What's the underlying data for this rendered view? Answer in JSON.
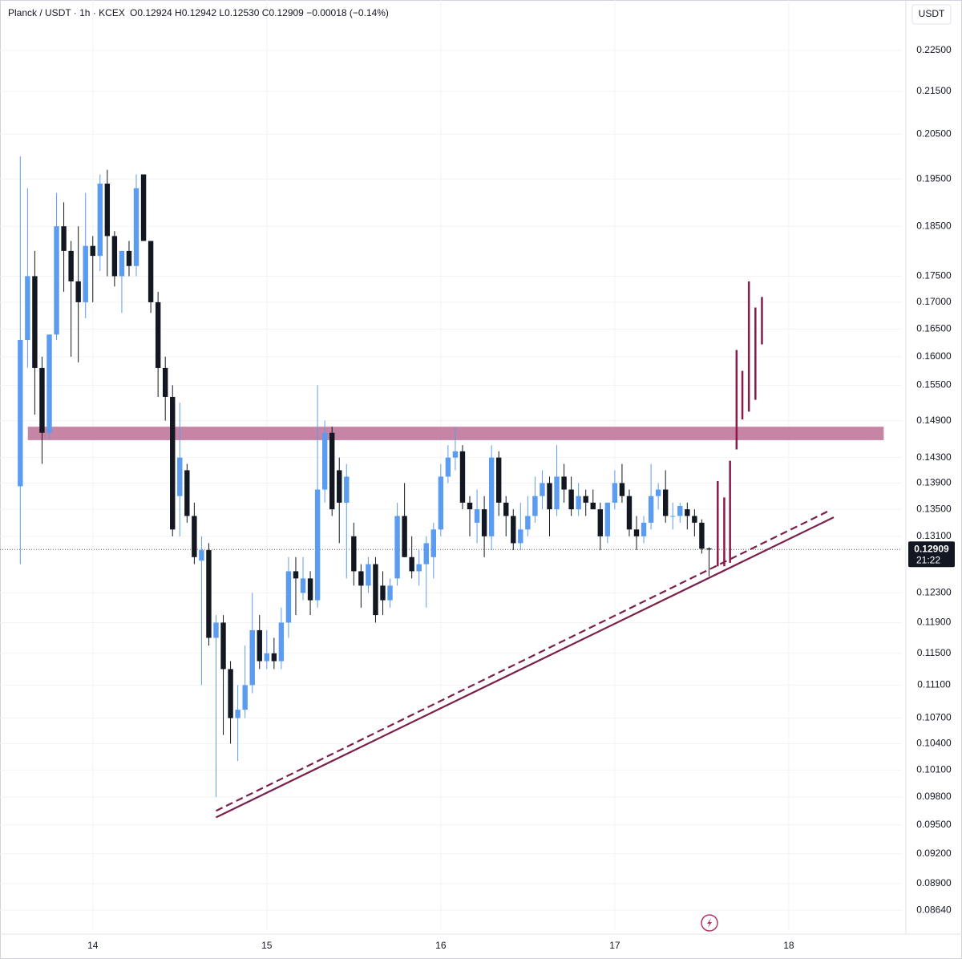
{
  "chart_data": {
    "type": "candlestick",
    "title": "Planck / USDT · 1h · KCEX",
    "ohlc_text": "O0.12924 H0.12942 L0.12530 C0.12909 −0.00018 (−0.14%)",
    "currency": "USDT",
    "x": [
      -10,
      -9,
      -8,
      -7,
      -6,
      -5,
      -4,
      -3,
      -2,
      -1,
      0,
      1,
      2,
      3,
      4,
      5,
      6,
      7,
      8,
      9,
      10,
      11,
      12,
      13,
      14,
      15,
      16,
      17,
      18,
      19,
      20,
      21,
      22,
      23,
      24,
      25,
      26,
      27,
      28,
      29,
      30,
      31,
      32,
      33,
      34,
      35,
      36,
      37,
      38,
      39,
      40,
      41,
      42,
      43,
      44,
      45,
      46,
      47,
      48,
      49,
      50,
      51,
      52,
      53,
      54,
      55,
      56,
      57,
      58,
      59,
      60,
      61,
      62,
      63,
      64,
      65,
      66,
      67,
      68,
      69,
      70,
      71,
      72,
      73,
      74,
      75,
      76,
      77,
      78,
      79,
      80,
      81,
      82,
      83,
      84,
      85
    ],
    "open": [
      0.1385,
      0.163,
      0.175,
      0.158,
      0.147,
      0.164,
      0.185,
      0.18,
      0.174,
      0.17,
      0.181,
      0.179,
      0.194,
      0.183,
      0.175,
      0.18,
      0.177,
      0.196,
      0.182,
      0.17,
      0.158,
      0.153,
      0.137,
      0.141,
      0.134,
      0.1275,
      0.129,
      0.117,
      0.119,
      0.113,
      0.107,
      0.108,
      0.111,
      0.118,
      0.114,
      0.115,
      0.114,
      0.119,
      0.126,
      0.123,
      0.125,
      0.122,
      0.138,
      0.147,
      0.141,
      0.136,
      0.131,
      0.126,
      0.124,
      0.127,
      0.124,
      0.122,
      0.125,
      0.134,
      0.128,
      0.126,
      0.127,
      0.128,
      0.132,
      0.14,
      0.143,
      0.144,
      0.136,
      0.133,
      0.135,
      0.131,
      0.143,
      0.136,
      0.134,
      0.13,
      0.132,
      0.134,
      0.137,
      0.139,
      0.135,
      0.14,
      0.138,
      0.135,
      0.137,
      0.136,
      0.135,
      0.131,
      0.136,
      0.139,
      0.137,
      0.132,
      0.131,
      0.133,
      0.137,
      0.138,
      0.134,
      0.134,
      0.135,
      0.134,
      0.133,
      0.12924
    ],
    "high": [
      0.2,
      0.193,
      0.18,
      0.16,
      0.163,
      0.192,
      0.19,
      0.182,
      0.185,
      0.192,
      0.183,
      0.196,
      0.197,
      0.184,
      0.18,
      0.182,
      0.196,
      0.196,
      0.182,
      0.172,
      0.16,
      0.155,
      0.152,
      0.142,
      0.136,
      0.131,
      0.13,
      0.12,
      0.12,
      0.114,
      0.111,
      0.116,
      0.123,
      0.12,
      0.118,
      0.117,
      0.121,
      0.128,
      0.128,
      0.128,
      0.126,
      0.155,
      0.149,
      0.148,
      0.143,
      0.142,
      0.133,
      0.127,
      0.128,
      0.128,
      0.126,
      0.125,
      0.136,
      0.139,
      0.131,
      0.129,
      0.131,
      0.133,
      0.142,
      0.145,
      0.148,
      0.145,
      0.137,
      0.138,
      0.137,
      0.145,
      0.144,
      0.137,
      0.135,
      0.136,
      0.137,
      0.14,
      0.141,
      0.14,
      0.145,
      0.142,
      0.14,
      0.139,
      0.138,
      0.138,
      0.136,
      0.136,
      0.141,
      0.142,
      0.138,
      0.134,
      0.134,
      0.142,
      0.139,
      0.141,
      0.136,
      0.136,
      0.136,
      0.135,
      0.1335,
      0.12942
    ],
    "low": [
      0.127,
      0.158,
      0.15,
      0.142,
      0.146,
      0.163,
      0.172,
      0.16,
      0.159,
      0.167,
      0.17,
      0.176,
      0.175,
      0.173,
      0.168,
      0.175,
      0.175,
      0.183,
      0.168,
      0.153,
      0.149,
      0.131,
      0.131,
      0.133,
      0.127,
      0.111,
      0.116,
      0.098,
      0.105,
      0.104,
      0.102,
      0.107,
      0.11,
      0.113,
      0.113,
      0.113,
      0.113,
      0.117,
      0.12,
      0.122,
      0.12,
      0.121,
      0.136,
      0.134,
      0.13,
      0.125,
      0.124,
      0.121,
      0.123,
      0.119,
      0.12,
      0.121,
      0.124,
      0.128,
      0.125,
      0.124,
      0.121,
      0.125,
      0.131,
      0.139,
      0.141,
      0.135,
      0.131,
      0.13,
      0.128,
      0.129,
      0.134,
      0.131,
      0.129,
      0.129,
      0.131,
      0.133,
      0.135,
      0.131,
      0.134,
      0.136,
      0.134,
      0.134,
      0.134,
      0.135,
      0.129,
      0.13,
      0.135,
      0.136,
      0.131,
      0.129,
      0.13,
      0.132,
      0.135,
      0.133,
      0.132,
      0.133,
      0.132,
      0.131,
      0.1285,
      0.1253
    ],
    "close": [
      0.163,
      0.175,
      0.158,
      0.147,
      0.164,
      0.185,
      0.18,
      0.174,
      0.17,
      0.181,
      0.179,
      0.194,
      0.183,
      0.175,
      0.18,
      0.177,
      0.193,
      0.182,
      0.17,
      0.158,
      0.153,
      0.132,
      0.143,
      0.134,
      0.128,
      0.129,
      0.117,
      0.119,
      0.113,
      0.107,
      0.108,
      0.111,
      0.118,
      0.114,
      0.115,
      0.114,
      0.119,
      0.126,
      0.125,
      0.125,
      0.122,
      0.138,
      0.147,
      0.135,
      0.136,
      0.14,
      0.126,
      0.124,
      0.127,
      0.12,
      0.122,
      0.124,
      0.134,
      0.128,
      0.126,
      0.127,
      0.13,
      0.132,
      0.14,
      0.143,
      0.144,
      0.136,
      0.135,
      0.135,
      0.131,
      0.143,
      0.136,
      0.134,
      0.13,
      0.132,
      0.134,
      0.137,
      0.139,
      0.135,
      0.14,
      0.138,
      0.135,
      0.137,
      0.136,
      0.135,
      0.131,
      0.136,
      0.139,
      0.137,
      0.132,
      0.131,
      0.133,
      0.137,
      0.138,
      0.134,
      0.134,
      0.1355,
      0.134,
      0.133,
      0.1292,
      0.12909
    ],
    "up_color": "#5b9cf0",
    "down_color": "#131722",
    "xlim": [
      -12.8,
      111.6
    ],
    "xticks": [
      {
        "value": 0,
        "label": "14"
      },
      {
        "value": 24,
        "label": "15"
      },
      {
        "value": 48,
        "label": "16"
      },
      {
        "value": 72,
        "label": "17"
      },
      {
        "value": 96,
        "label": "18"
      }
    ],
    "ylim": [
      0.0845,
      0.238
    ],
    "log_scale": true,
    "grid": true,
    "yticks": [
      {
        "value": 0.225,
        "label": "0.22500"
      },
      {
        "value": 0.215,
        "label": "0.21500"
      },
      {
        "value": 0.205,
        "label": "0.20500"
      },
      {
        "value": 0.195,
        "label": "0.19500"
      },
      {
        "value": 0.185,
        "label": "0.18500"
      },
      {
        "value": 0.175,
        "label": "0.17500"
      },
      {
        "value": 0.17,
        "label": "0.17000"
      },
      {
        "value": 0.165,
        "label": "0.16500"
      },
      {
        "value": 0.16,
        "label": "0.16000"
      },
      {
        "value": 0.155,
        "label": "0.15500"
      },
      {
        "value": 0.149,
        "label": "0.14900"
      },
      {
        "value": 0.143,
        "label": "0.14300"
      },
      {
        "value": 0.139,
        "label": "0.13900"
      },
      {
        "value": 0.135,
        "label": "0.13500"
      },
      {
        "value": 0.131,
        "label": "0.13100"
      },
      {
        "value": 0.123,
        "label": "0.12300"
      },
      {
        "value": 0.119,
        "label": "0.11900"
      },
      {
        "value": 0.115,
        "label": "0.11500"
      },
      {
        "value": 0.111,
        "label": "0.11100"
      },
      {
        "value": 0.107,
        "label": "0.10700"
      },
      {
        "value": 0.104,
        "label": "0.10400"
      },
      {
        "value": 0.101,
        "label": "0.10100"
      },
      {
        "value": 0.098,
        "label": "0.09800"
      },
      {
        "value": 0.095,
        "label": "0.09500"
      },
      {
        "value": 0.092,
        "label": "0.09200"
      },
      {
        "value": 0.089,
        "label": "0.08900"
      },
      {
        "value": 0.0864,
        "label": "0.08640"
      }
    ],
    "last_price": {
      "value": 0.12909,
      "label": "0.12909"
    },
    "countdown": "21:22",
    "zone": {
      "color": "#c0789a",
      "x": [
        -8.96,
        109.1
      ],
      "y": [
        0.148,
        0.1458
      ]
    },
    "trendline": {
      "color": "#7b1f4b",
      "x": [
        17.0,
        102.2
      ],
      "y": [
        0.0958,
        0.1338
      ]
    },
    "dashed_line": {
      "color": "#7b1f4b",
      "x": [
        17.0,
        101.6
      ],
      "y": [
        0.0965,
        0.1348
      ]
    },
    "projection": {
      "color": "#8b1a4a",
      "x": [
        86.2,
        87.1,
        87.9,
        88.8,
        89.6,
        90.5,
        91.4,
        92.3
      ],
      "low": [
        0.1267,
        0.1267,
        0.1272,
        0.1443,
        0.1492,
        0.1505,
        0.1525,
        0.1622
      ],
      "high": [
        0.1393,
        0.1368,
        0.1425,
        0.1612,
        0.1575,
        0.174,
        0.169,
        0.171
      ]
    }
  }
}
